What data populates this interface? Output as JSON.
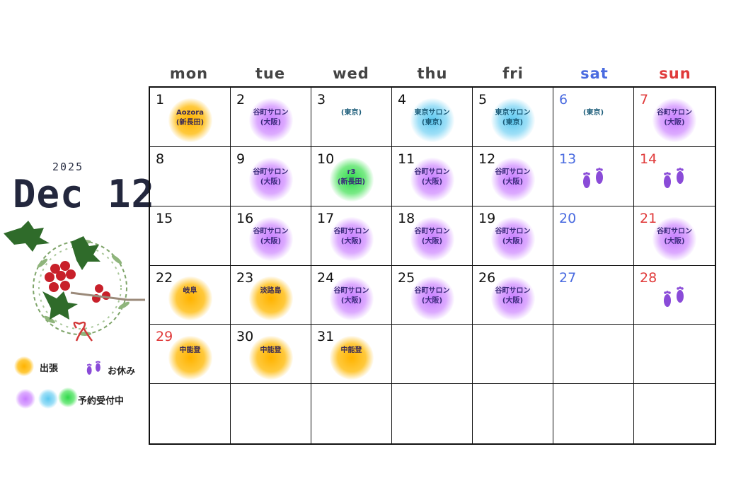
{
  "header": {
    "year": "2025",
    "title": "Dec 12"
  },
  "weekdays": [
    {
      "label": "mon",
      "color": "#444444"
    },
    {
      "label": "tue",
      "color": "#444444"
    },
    {
      "label": "wed",
      "color": "#444444"
    },
    {
      "label": "thu",
      "color": "#444444"
    },
    {
      "label": "fri",
      "color": "#444444"
    },
    {
      "label": "sat",
      "color": "#4a6be0"
    },
    {
      "label": "sun",
      "color": "#e03a3a"
    }
  ],
  "legend": {
    "business_trip": "出張",
    "day_off": "お休み",
    "booking_open": "予約受付中"
  },
  "colors": {
    "orange": "#ffb300",
    "purple": "#c77dff",
    "blue": "#5cc8f0",
    "green": "#2fd94a",
    "sat": "#4a6be0",
    "sun": "#e03a3a"
  },
  "weeks": [
    [
      {
        "day": "1",
        "dayType": "",
        "blob": "orange",
        "text": "Aozora\n(新長田)",
        "tone": "dark"
      },
      {
        "day": "2",
        "dayType": "",
        "blob": "purple",
        "text": "谷町サロン\n(大阪)"
      },
      {
        "day": "3",
        "dayType": "",
        "blob": "",
        "text": "(東京)",
        "tone": "teal"
      },
      {
        "day": "4",
        "dayType": "",
        "blob": "blue",
        "text": "東京サロン\n(東京)",
        "tone": "teal"
      },
      {
        "day": "5",
        "dayType": "",
        "blob": "blue",
        "text": "東京サロン\n(東京)",
        "tone": "teal"
      },
      {
        "day": "6",
        "dayType": "sat",
        "blob": "",
        "text": "(東京)",
        "tone": "teal"
      },
      {
        "day": "7",
        "dayType": "sun",
        "blob": "purple",
        "text": "谷町サロン\n(大阪)"
      }
    ],
    [
      {
        "day": "8",
        "dayType": "",
        "blob": "",
        "text": ""
      },
      {
        "day": "9",
        "dayType": "",
        "blob": "purple",
        "text": "谷町サロン\n(大阪)"
      },
      {
        "day": "10",
        "dayType": "",
        "blob": "green",
        "text": "r3\n(新長田)"
      },
      {
        "day": "11",
        "dayType": "",
        "blob": "purple",
        "text": "谷町サロン\n(大阪)"
      },
      {
        "day": "12",
        "dayType": "",
        "blob": "purple",
        "text": "谷町サロン\n(大阪)"
      },
      {
        "day": "13",
        "dayType": "sat",
        "blob": "",
        "text": "",
        "feet": true
      },
      {
        "day": "14",
        "dayType": "sun",
        "blob": "",
        "text": "",
        "feet": true
      }
    ],
    [
      {
        "day": "15",
        "dayType": "",
        "blob": "",
        "text": ""
      },
      {
        "day": "16",
        "dayType": "",
        "blob": "purple",
        "text": "谷町サロン\n(大阪)"
      },
      {
        "day": "17",
        "dayType": "",
        "blob": "purple",
        "text": "谷町サロン\n(大阪)"
      },
      {
        "day": "18",
        "dayType": "",
        "blob": "purple",
        "text": "谷町サロン\n(大阪)"
      },
      {
        "day": "19",
        "dayType": "",
        "blob": "purple",
        "text": "谷町サロン\n(大阪)"
      },
      {
        "day": "20",
        "dayType": "sat",
        "blob": "",
        "text": ""
      },
      {
        "day": "21",
        "dayType": "sun",
        "blob": "purple",
        "text": "谷町サロン\n(大阪)"
      }
    ],
    [
      {
        "day": "22",
        "dayType": "",
        "blob": "orange",
        "text": "岐阜",
        "tone": "dark"
      },
      {
        "day": "23",
        "dayType": "",
        "blob": "orange",
        "text": "淡路島",
        "tone": "dark"
      },
      {
        "day": "24",
        "dayType": "",
        "blob": "purple",
        "text": "谷町サロン\n(大阪)"
      },
      {
        "day": "25",
        "dayType": "",
        "blob": "purple",
        "text": "谷町サロン\n(大阪)"
      },
      {
        "day": "26",
        "dayType": "",
        "blob": "purple",
        "text": "谷町サロン\n(大阪)"
      },
      {
        "day": "27",
        "dayType": "sat",
        "blob": "",
        "text": ""
      },
      {
        "day": "28",
        "dayType": "sun",
        "blob": "",
        "text": "",
        "feet": true
      }
    ],
    [
      {
        "day": "29",
        "dayType": "sun",
        "blob": "orange",
        "text": "中能登",
        "tone": "dark"
      },
      {
        "day": "30",
        "dayType": "",
        "blob": "orange",
        "text": "中能登",
        "tone": "dark"
      },
      {
        "day": "31",
        "dayType": "",
        "blob": "orange",
        "text": "中能登",
        "tone": "dark"
      },
      {
        "day": "",
        "dayType": "",
        "blob": "",
        "text": ""
      },
      {
        "day": "",
        "dayType": "",
        "blob": "",
        "text": ""
      },
      {
        "day": "",
        "dayType": "",
        "blob": "",
        "text": ""
      },
      {
        "day": "",
        "dayType": "",
        "blob": "",
        "text": ""
      }
    ],
    [
      {
        "day": "",
        "dayType": "",
        "blob": "",
        "text": ""
      },
      {
        "day": "",
        "dayType": "",
        "blob": "",
        "text": ""
      },
      {
        "day": "",
        "dayType": "",
        "blob": "",
        "text": ""
      },
      {
        "day": "",
        "dayType": "",
        "blob": "",
        "text": ""
      },
      {
        "day": "",
        "dayType": "",
        "blob": "",
        "text": ""
      },
      {
        "day": "",
        "dayType": "",
        "blob": "",
        "text": ""
      },
      {
        "day": "",
        "dayType": "",
        "blob": "",
        "text": ""
      }
    ]
  ]
}
